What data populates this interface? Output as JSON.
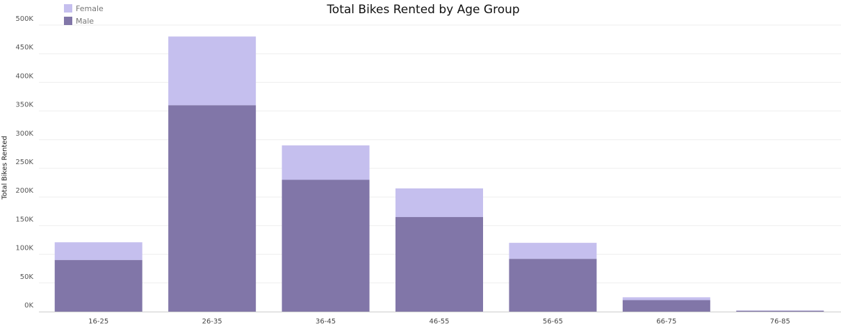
{
  "chart_data": {
    "type": "bar",
    "stacked": true,
    "title": "Total Bikes Rented by Age Group",
    "xlabel": "",
    "ylabel": "Total Bikes Rented",
    "categories": [
      "16-25",
      "26-35",
      "36-45",
      "46-55",
      "56-65",
      "66-75",
      "76-85"
    ],
    "series": [
      {
        "name": "Male",
        "color": "#8176a8",
        "values": [
          90000,
          360000,
          230000,
          165000,
          92000,
          20000,
          1500
        ]
      },
      {
        "name": "Female",
        "color": "#c5bfee",
        "values": [
          31000,
          120000,
          60000,
          50000,
          28000,
          5000,
          500
        ]
      }
    ],
    "ylim": [
      0,
      500000
    ],
    "yticks": [
      0,
      50000,
      100000,
      150000,
      200000,
      250000,
      300000,
      350000,
      400000,
      450000,
      500000
    ],
    "ytick_labels": [
      "0K",
      "50K",
      "100K",
      "150K",
      "200K",
      "250K",
      "300K",
      "350K",
      "400K",
      "450K",
      "500K"
    ],
    "grid": true,
    "legend_position": "top-left"
  }
}
